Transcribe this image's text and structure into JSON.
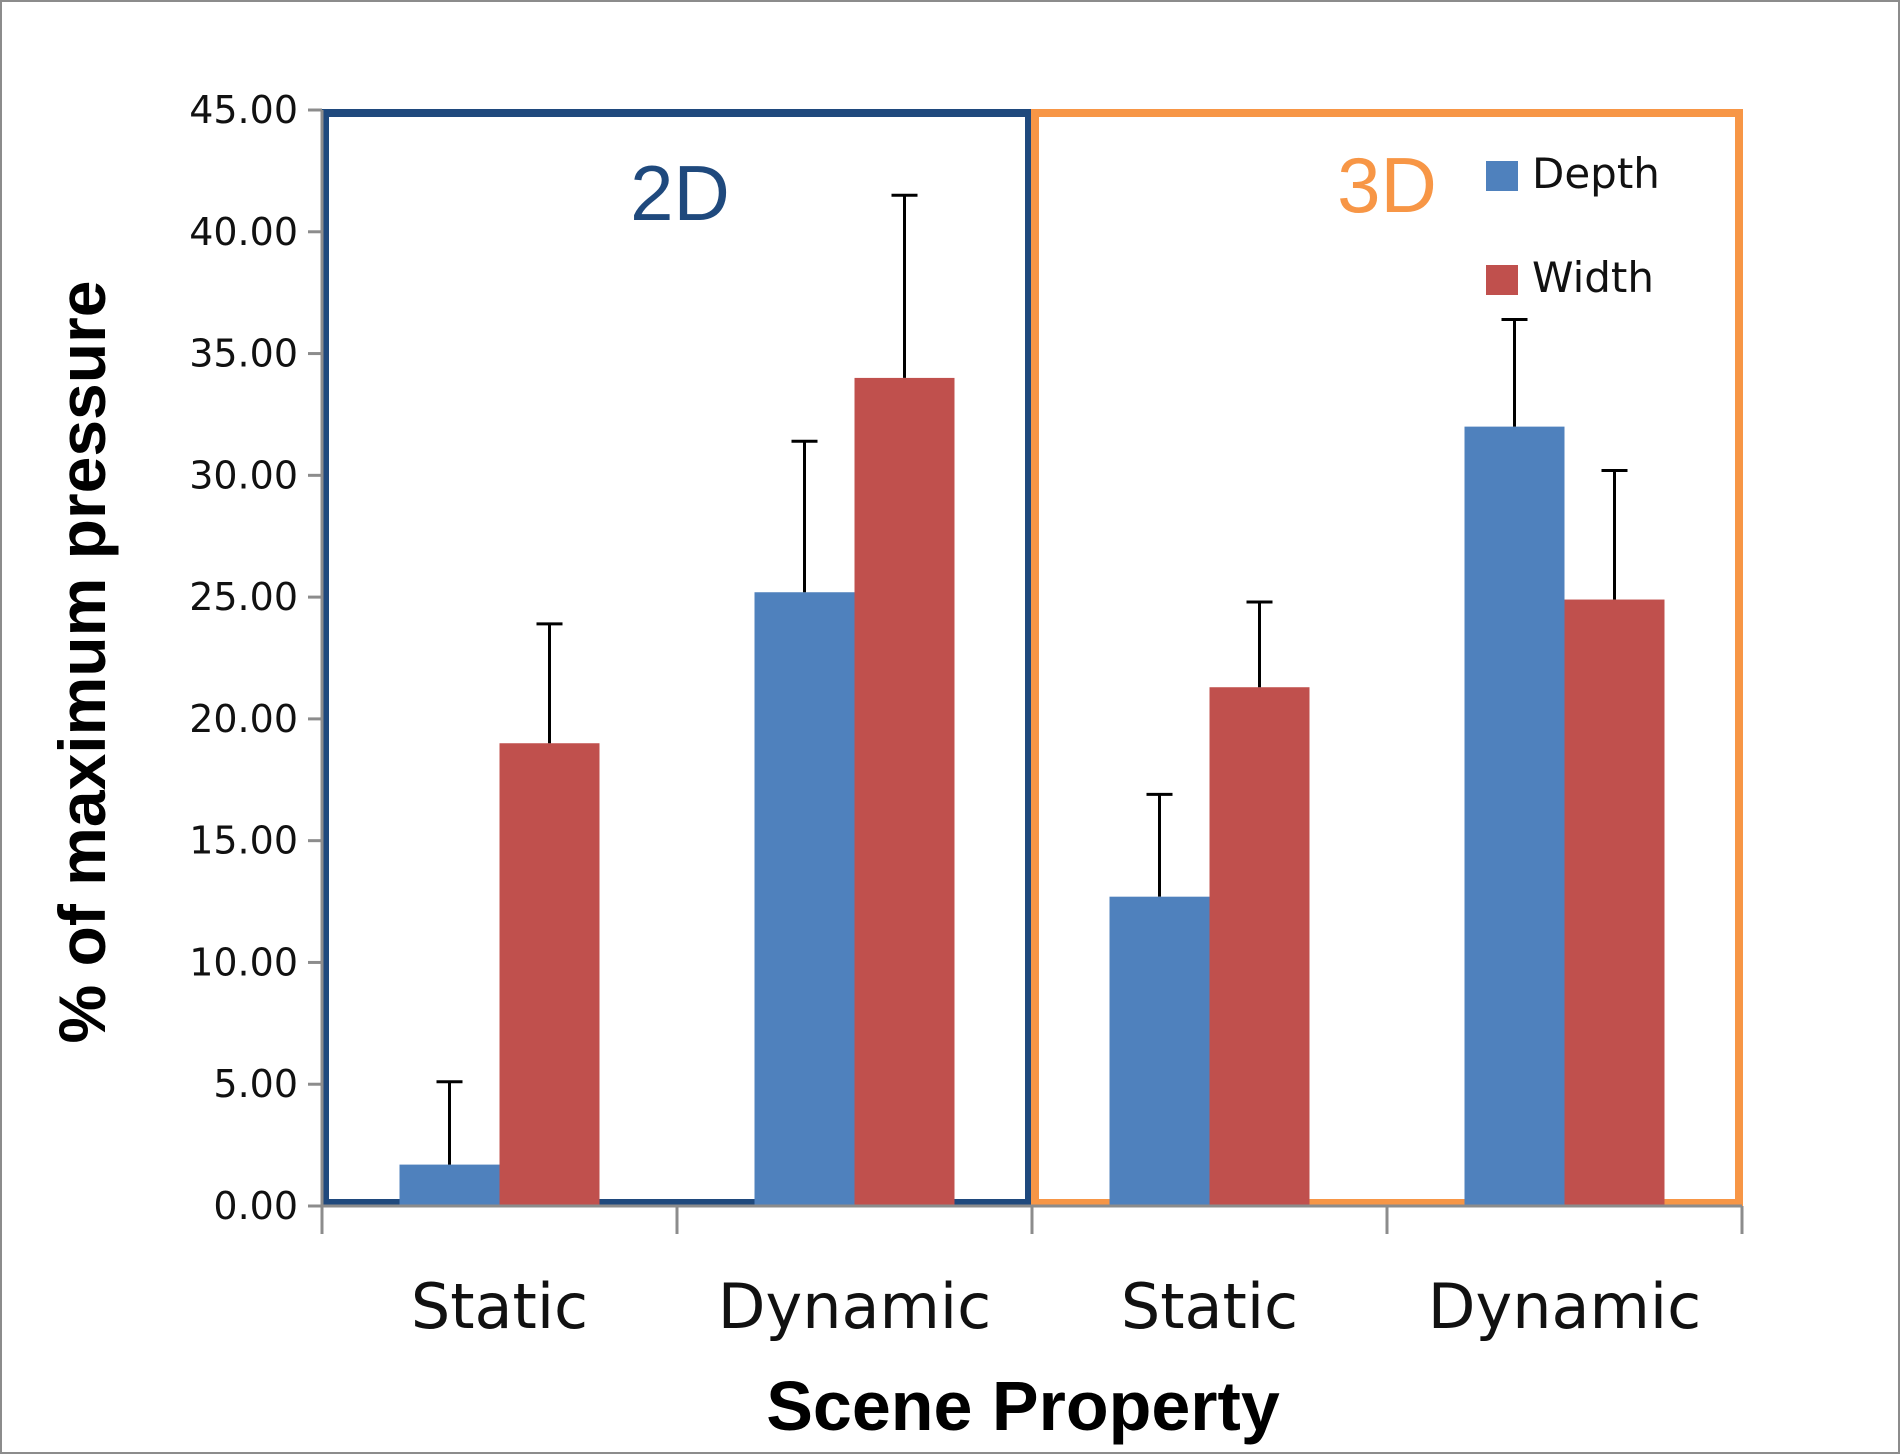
{
  "chart_data": {
    "type": "bar",
    "xlabel": "Scene Property",
    "ylabel": "% of maximum pressure",
    "ylim": [
      0,
      45
    ],
    "yticks": [
      "0.00",
      "5.00",
      "10.00",
      "15.00",
      "20.00",
      "25.00",
      "30.00",
      "35.00",
      "40.00",
      "45.00"
    ],
    "categories": [
      "Static",
      "Dynamic",
      "Static",
      "Dynamic"
    ],
    "groups": [
      {
        "label": "2D",
        "categories": [
          0,
          1
        ],
        "color": "#1f497d"
      },
      {
        "label": "3D",
        "categories": [
          2,
          3
        ],
        "color": "#f79646"
      }
    ],
    "series": [
      {
        "name": "Depth",
        "color": "#4f81bd",
        "values": [
          1.7,
          25.2,
          12.7,
          32.0
        ],
        "error": [
          3.4,
          6.2,
          4.2,
          4.4
        ]
      },
      {
        "name": "Width",
        "color": "#c0504d",
        "values": [
          19.0,
          34.0,
          21.3,
          24.9
        ],
        "error": [
          4.9,
          7.5,
          3.5,
          5.3
        ]
      }
    ],
    "legend": "top-right",
    "grid": false
  }
}
